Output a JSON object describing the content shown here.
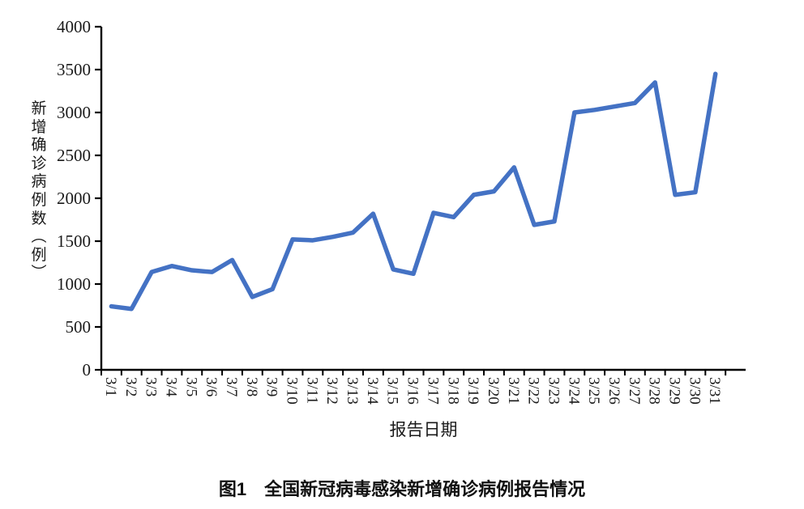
{
  "figure": {
    "caption": "图1　全国新冠病毒感染新增确诊病例报告情况"
  },
  "chart_data": {
    "type": "line",
    "title": "",
    "xlabel": "报告日期",
    "ylabel": "新增确诊病例数（例）",
    "categories": [
      "3/1",
      "3/2",
      "3/3",
      "3/4",
      "3/5",
      "3/6",
      "3/7",
      "3/8",
      "3/9",
      "3/10",
      "3/11",
      "3/12",
      "3/13",
      "3/14",
      "3/15",
      "3/16",
      "3/17",
      "3/18",
      "3/19",
      "3/20",
      "3/21",
      "3/22",
      "3/23",
      "3/24",
      "3/25",
      "3/26",
      "3/27",
      "3/28",
      "3/29",
      "3/30",
      "3/31"
    ],
    "series": [
      {
        "name": "新增确诊病例数",
        "values": [
          740,
          710,
          1140,
          1210,
          1160,
          1140,
          1280,
          850,
          940,
          1520,
          1510,
          1550,
          1600,
          1820,
          1170,
          1120,
          1830,
          1780,
          2040,
          2080,
          2360,
          1690,
          1730,
          3000,
          3030,
          3070,
          3110,
          3350,
          2040,
          2070,
          3450
        ]
      }
    ],
    "ylim": [
      0,
      4000
    ],
    "yticks": [
      0,
      500,
      1000,
      1500,
      2000,
      2500,
      3000,
      3500,
      4000
    ],
    "grid": false,
    "legend_position": "none",
    "line_color": "#4472C4",
    "axis_color": "#000000",
    "x_tick_style": "rotated-90"
  }
}
